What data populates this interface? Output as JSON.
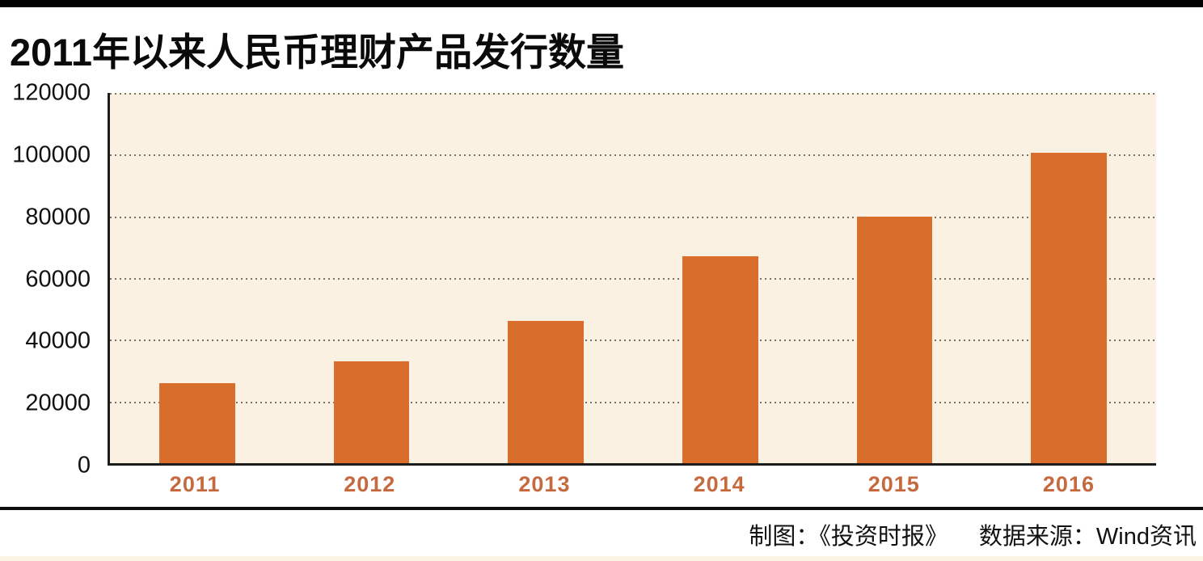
{
  "page": {
    "title": "2011年以来人民币理财产品发行数量"
  },
  "footer": {
    "credit_left": "制图：《投资时报》",
    "credit_right": "数据来源：Wind资讯"
  },
  "chart_data": {
    "type": "bar",
    "title": "2011年以来人民币理财产品发行数量",
    "categories": [
      "2011",
      "2012",
      "2013",
      "2014",
      "2015",
      "2016"
    ],
    "values": [
      26000,
      33000,
      46000,
      67000,
      80000,
      100500
    ],
    "xlabel": "",
    "ylabel": "",
    "ylim": [
      0,
      120000
    ],
    "yticks": [
      0,
      20000,
      40000,
      60000,
      80000,
      100000,
      120000
    ],
    "grid": "horizontal-dotted",
    "legend": "none",
    "colors": {
      "bar": "#d96d2c",
      "plot_background": "#faf1e3",
      "axis": "#1c1c1c",
      "x_tick_label": "#c56a3f",
      "y_tick_label": "#111111",
      "top_rule": "#000000"
    }
  }
}
